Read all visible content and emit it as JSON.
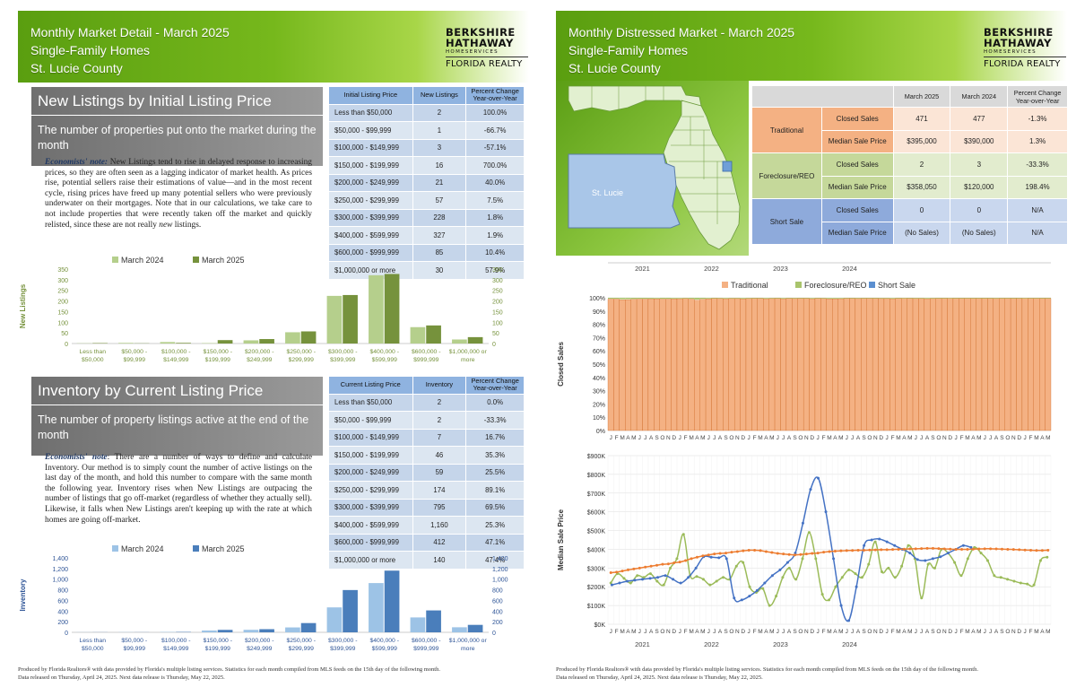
{
  "left": {
    "title": [
      "Monthly Market Detail - March 2025",
      "Single-Family Homes",
      "St. Lucie County"
    ],
    "logo": {
      "l1": "BERKSHIRE",
      "l2": "HATHAWAY",
      "l3": "HOMESERVICES",
      "l4": "FLORIDA REALTY"
    },
    "nl": {
      "heading": "New Listings by Initial Listing Price",
      "sub": "The number of properties put onto the market during the month",
      "note_label": "Economists' note:",
      "note": " New Listings tend to rise in delayed response to increasing prices, so they are often seen as a lagging indicator of market health.  As prices rise, potential sellers raise their estimations of value—and in the most recent cycle, rising prices have freed up many potential sellers who were previously underwater on their mortgages.  Note that in our calculations, we take care to not include properties that were recently taken off the market and quickly relisted, since these are not really ",
      "note_em": "new",
      "note_end": " listings.",
      "headers": [
        "Initial Listing Price",
        "New Listings",
        "Percent Change Year-over-Year"
      ],
      "rows": [
        [
          "Less than $50,000",
          "2",
          "100.0%"
        ],
        [
          "$50,000 - $99,999",
          "1",
          "-66.7%"
        ],
        [
          "$100,000 - $149,999",
          "3",
          "-57.1%"
        ],
        [
          "$150,000 - $199,999",
          "16",
          "700.0%"
        ],
        [
          "$200,000 - $249,999",
          "21",
          "40.0%"
        ],
        [
          "$250,000 - $299,999",
          "57",
          "7.5%"
        ],
        [
          "$300,000 - $399,999",
          "228",
          "1.8%"
        ],
        [
          "$400,000 - $599,999",
          "327",
          "1.9%"
        ],
        [
          "$600,000 - $999,999",
          "85",
          "10.4%"
        ],
        [
          "$1,000,000 or more",
          "30",
          "57.9%"
        ]
      ]
    },
    "inv": {
      "heading": "Inventory by Current Listing Price",
      "sub": "The number of property listings active at the end of the month",
      "note_label": "Economists' note",
      "note": ":  There are a number of ways to define and calculate Inventory.  Our method is to simply count the number of active listings on the last day of the month, and hold this number to compare with the same month the following year.  Inventory rises when New Listings are outpacing the number of listings that go off-market (regardless of whether they actually sell).  Likewise, it falls when New Listings aren't keeping up with the rate at which homes are going off-market.",
      "headers": [
        "Current Listing Price",
        "Inventory",
        "Percent Change Year-over-Year"
      ],
      "rows": [
        [
          "Less than $50,000",
          "2",
          "0.0%"
        ],
        [
          "$50,000 - $99,999",
          "2",
          "-33.3%"
        ],
        [
          "$100,000 - $149,999",
          "7",
          "16.7%"
        ],
        [
          "$150,000 - $199,999",
          "46",
          "35.3%"
        ],
        [
          "$200,000 - $249,999",
          "59",
          "25.5%"
        ],
        [
          "$250,000 - $299,999",
          "174",
          "89.1%"
        ],
        [
          "$300,000 - $399,999",
          "795",
          "69.5%"
        ],
        [
          "$400,000 - $599,999",
          "1,160",
          "25.3%"
        ],
        [
          "$600,000 - $999,999",
          "412",
          "47.1%"
        ],
        [
          "$1,000,000 or more",
          "140",
          "47.4%"
        ]
      ]
    },
    "footer": [
      "Produced by Florida Realtors® with data provided by Florida's multiple listing services. Statistics for each month compiled from MLS feeds on the 15th day of the following month.",
      "Data released on Thursday, April 24, 2025. Next data release is Thursday, May 22, 2025."
    ]
  },
  "right": {
    "title": [
      "Monthly Distressed Market - March 2025",
      "Single-Family Homes",
      "St. Lucie County"
    ],
    "logo": {
      "l1": "BERKSHIRE",
      "l2": "HATHAWAY",
      "l3": "HOMESERVICES",
      "l4": "FLORIDA REALTY"
    },
    "map_label": "St. Lucie",
    "table": {
      "headers": [
        "March 2025",
        "March 2024",
        "Percent Change Year-over-Year"
      ],
      "groups": [
        {
          "name": "Traditional",
          "color": "#f4b183",
          "light": "#fbe5d6",
          "rows": [
            [
              "Closed Sales",
              "471",
              "477",
              "-1.3%"
            ],
            [
              "Median Sale Price",
              "$395,000",
              "$390,000",
              "1.3%"
            ]
          ]
        },
        {
          "name": "Foreclosure/REO",
          "color": "#c5d89a",
          "light": "#e2ecce",
          "rows": [
            [
              "Closed Sales",
              "2",
              "3",
              "-33.3%"
            ],
            [
              "Median Sale Price",
              "$358,050",
              "$120,000",
              "198.4%"
            ]
          ]
        },
        {
          "name": "Short Sale",
          "color": "#8eaadb",
          "light": "#c9d7ee",
          "rows": [
            [
              "Closed Sales",
              "0",
              "0",
              "N/A"
            ],
            [
              "Median Sale Price",
              "(No Sales)",
              "(No Sales)",
              "N/A"
            ]
          ]
        }
      ]
    },
    "footer": [
      "Produced by Florida Realtors® with data provided by Florida's multiple listing services. Statistics for each month compiled from MLS feeds on the 15th day of the following month.",
      "Data released on Thursday, April 24, 2025. Next data release is Thursday, May 22, 2025."
    ]
  },
  "chart_data": [
    {
      "type": "bar",
      "ylabel": "New Listings",
      "categories": [
        "Less than $50,000",
        "$50,000 - $99,999",
        "$100,000 - $149,999",
        "$150,000 - $199,999",
        "$200,000 - $249,999",
        "$250,000 - $299,999",
        "$300,000 - $399,999",
        "$400,000 - $599,999",
        "$600,000 - $999,999",
        "$1,000,000 or more"
      ],
      "series": [
        {
          "name": "March 2024",
          "color": "#b5cf8c",
          "values": [
            1,
            3,
            7,
            2,
            15,
            53,
            224,
            321,
            77,
            19
          ]
        },
        {
          "name": "March 2025",
          "color": "#76923c",
          "values": [
            2,
            1,
            3,
            16,
            21,
            57,
            228,
            327,
            85,
            30
          ]
        }
      ],
      "ylim": [
        0,
        350
      ],
      "yticks": [
        0,
        50,
        100,
        150,
        200,
        250,
        300,
        350
      ],
      "legend": "top"
    },
    {
      "type": "bar",
      "ylabel": "Inventory",
      "categories": [
        "Less than $50,000",
        "$50,000 - $99,999",
        "$100,000 - $149,999",
        "$150,000 - $199,999",
        "$200,000 - $249,999",
        "$250,000 - $299,999",
        "$300,000 - $399,999",
        "$400,000 - $599,999",
        "$600,000 - $999,999",
        "$1,000,000 or more"
      ],
      "series": [
        {
          "name": "March 2024",
          "color": "#9dc3e6",
          "values": [
            2,
            3,
            6,
            34,
            47,
            92,
            469,
            926,
            280,
            95
          ]
        },
        {
          "name": "March 2025",
          "color": "#4a7ebb",
          "values": [
            2,
            2,
            7,
            46,
            59,
            174,
            795,
            1160,
            412,
            140
          ]
        }
      ],
      "ylim": [
        0,
        1400
      ],
      "yticks": [
        0,
        200,
        400,
        600,
        800,
        1000,
        1200,
        1400
      ],
      "ytick_labels": [
        "0",
        "200",
        "400",
        "600",
        "800",
        "1,000",
        "1,200",
        "1,400"
      ],
      "legend": "top"
    },
    {
      "type": "bar",
      "stacked": true,
      "ylabel": "Closed Sales",
      "years": [
        "2021",
        "2022",
        "2023",
        "2024"
      ],
      "months": "JFMAMJJASOND",
      "series": [
        {
          "name": "Traditional",
          "color": "#f4b183"
        },
        {
          "name": "Foreclosure/REO",
          "color": "#a9c46c"
        },
        {
          "name": "Short Sale",
          "color": "#5b8fd0"
        }
      ],
      "traditional_pct": [
        99.0,
        99.0,
        98.5,
        98.6,
        98.8,
        99.0,
        99.0,
        99.1,
        99.2,
        99.0,
        99.0,
        99.2,
        99.3,
        99.4,
        99.0,
        98.2,
        98.9,
        99.2,
        99.5,
        99.4,
        99.3,
        99.4,
        99.4,
        99.2,
        99.4,
        99.5,
        99.6,
        99.3,
        99.4,
        99.5,
        99.3,
        99.6,
        99.4,
        99.5,
        99.6,
        99.3,
        99.6,
        99.4,
        99.2,
        99.2,
        99.3,
        99.6,
        99.5,
        99.4,
        99.5,
        99.6,
        99.5,
        99.4,
        99.4,
        99.3,
        99.5,
        99.7,
        99.6,
        99.4,
        99.4,
        99.3,
        99.4,
        99.5,
        99.6,
        99.7,
        99.5,
        99.5,
        99.6,
        99.5,
        99.6,
        99.5,
        99.5,
        99.4,
        99.6,
        99.6,
        99.5,
        99.6,
        99.7,
        99.6,
        99.5,
        99.5,
        99.6
      ],
      "ylim": [
        0,
        100
      ],
      "yticks": [
        "0%",
        "10%",
        "20%",
        "30%",
        "40%",
        "50%",
        "60%",
        "70%",
        "80%",
        "90%",
        "100%"
      ],
      "legend": "top"
    },
    {
      "type": "line",
      "ylabel": "Median Sale Price",
      "years": [
        "2021",
        "2022",
        "2023",
        "2024"
      ],
      "months": "JFMAMJJASOND",
      "ylim": [
        0,
        900000
      ],
      "yticks": [
        "$0K",
        "$100K",
        "$200K",
        "$300K",
        "$400K",
        "$500K",
        "$600K",
        "$700K",
        "$800K",
        "$900K"
      ],
      "series": [
        {
          "name": "Traditional",
          "color": "#ed7d31",
          "values": [
            275000,
            278000,
            284000,
            290000,
            295000,
            300000,
            305000,
            310000,
            315000,
            320000,
            322000,
            328000,
            332000,
            340000,
            350000,
            358000,
            365000,
            370000,
            375000,
            378000,
            380000,
            385000,
            388000,
            392000,
            395000,
            395000,
            393000,
            388000,
            383000,
            378000,
            375000,
            372000,
            370000,
            372000,
            375000,
            378000,
            380000,
            385000,
            388000,
            390000,
            392000,
            393000,
            394000,
            395000,
            395000,
            396000,
            397000,
            398000,
            398000,
            399000,
            400000,
            401000,
            402000,
            403000,
            404000,
            405000,
            405000,
            404000,
            402000,
            401000,
            400000,
            400000,
            400000,
            401000,
            402000,
            403000,
            403000,
            402000,
            401000,
            400000,
            399000,
            398000,
            396000,
            395000,
            394000,
            394000,
            395000
          ]
        },
        {
          "name": "Foreclosure/REO",
          "color": "#9bbb59",
          "values": [
            220000,
            270000,
            245000,
            220000,
            260000,
            250000,
            270000,
            230000,
            210000,
            300000,
            350000,
            480000,
            260000,
            255000,
            240000,
            210000,
            230000,
            250000,
            240000,
            310000,
            330000,
            200000,
            170000,
            190000,
            100000,
            150000,
            250000,
            300000,
            240000,
            350000,
            490000,
            350000,
            160000,
            130000,
            200000,
            250000,
            290000,
            270000,
            250000,
            320000,
            440000,
            280000,
            300000,
            250000,
            310000,
            420000,
            350000,
            140000,
            320000,
            300000,
            400000,
            380000,
            330000,
            260000,
            350000,
            410000,
            380000,
            340000,
            260000,
            250000,
            240000,
            230000,
            220000,
            215000,
            210000,
            340000,
            358050
          ]
        },
        {
          "name": "Short Sale",
          "color": "#4472c4",
          "values": [
            210000,
            220000,
            230000,
            235000,
            240000,
            245000,
            250000,
            260000,
            240000,
            220000,
            250000,
            300000,
            360000,
            358000,
            355000,
            350000,
            140000,
            130000,
            150000,
            180000,
            220000,
            260000,
            290000,
            330000,
            380000,
            540000,
            720000,
            780000,
            600000,
            350000,
            100000,
            20000,
            200000,
            420000,
            450000,
            455000,
            440000,
            420000,
            400000,
            380000,
            345000,
            340000,
            350000,
            360000,
            380000,
            400000,
            420000,
            410000
          ]
        }
      ]
    }
  ]
}
